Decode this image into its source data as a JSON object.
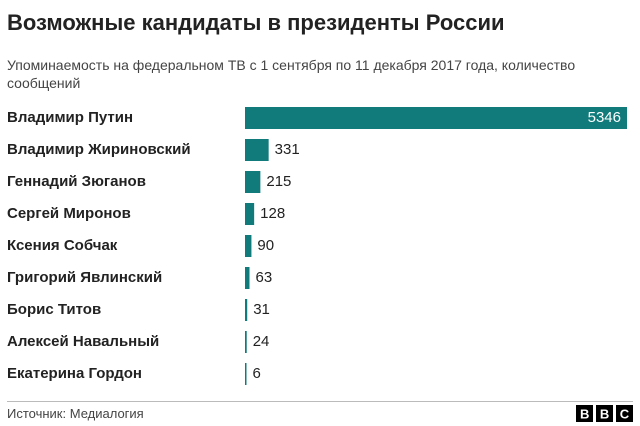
{
  "chart_data": {
    "type": "bar",
    "orientation": "horizontal",
    "title": "Возможные кандидаты в президенты России",
    "subtitle": "Упоминаемость на федеральном ТВ с 1 сентября по 11 декабря 2017 года, количество сообщений",
    "categories": [
      "Владимир Путин",
      "Владимир Жириновский",
      "Геннадий Зюганов",
      "Сергей Миронов",
      "Ксения Собчак",
      "Григорий Явлинский",
      "Борис Титов",
      "Алексей Навальный",
      "Екатерина Гордон"
    ],
    "values": [
      5346,
      331,
      215,
      128,
      90,
      63,
      31,
      24,
      6
    ],
    "color": "#117b7c",
    "source": "Источник: Медиалогия",
    "logo": "BBC"
  }
}
